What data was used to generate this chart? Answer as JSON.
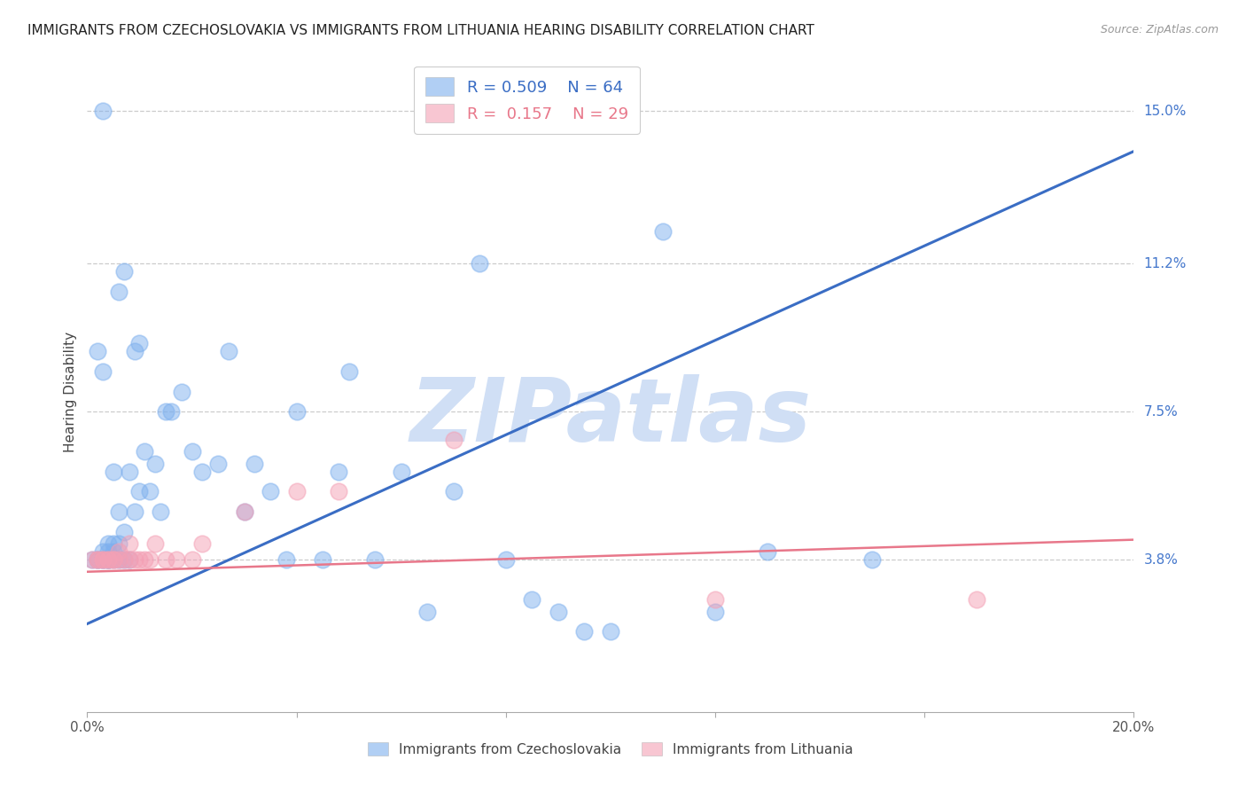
{
  "title": "IMMIGRANTS FROM CZECHOSLOVAKIA VS IMMIGRANTS FROM LITHUANIA HEARING DISABILITY CORRELATION CHART",
  "source": "Source: ZipAtlas.com",
  "ylabel": "Hearing Disability",
  "xlim": [
    0.0,
    0.2
  ],
  "ylim": [
    0.0,
    0.16
  ],
  "ytick_labels_right": [
    "15.0%",
    "11.2%",
    "7.5%",
    "3.8%"
  ],
  "ytick_vals_right": [
    0.15,
    0.112,
    0.075,
    0.038
  ],
  "legend_r1": "R = 0.509",
  "legend_n1": "N = 64",
  "legend_r2": "R =  0.157",
  "legend_n2": "N = 29",
  "blue_color": "#7EB0EE",
  "pink_color": "#F4A0B5",
  "line_blue": "#3A6DC4",
  "line_pink": "#E8778A",
  "watermark": "ZIPatlas",
  "watermark_color": "#D0DFF5",
  "blue_scatter_x": [
    0.001,
    0.002,
    0.002,
    0.003,
    0.003,
    0.003,
    0.004,
    0.004,
    0.004,
    0.004,
    0.005,
    0.005,
    0.005,
    0.006,
    0.006,
    0.006,
    0.007,
    0.007,
    0.008,
    0.008,
    0.009,
    0.009,
    0.01,
    0.01,
    0.011,
    0.012,
    0.013,
    0.014,
    0.015,
    0.016,
    0.018,
    0.02,
    0.022,
    0.025,
    0.027,
    0.03,
    0.032,
    0.035,
    0.038,
    0.04,
    0.045,
    0.048,
    0.05,
    0.055,
    0.06,
    0.065,
    0.07,
    0.075,
    0.08,
    0.085,
    0.09,
    0.095,
    0.1,
    0.11,
    0.12,
    0.13,
    0.15,
    0.002,
    0.003,
    0.003,
    0.004,
    0.005,
    0.006,
    0.007
  ],
  "blue_scatter_y": [
    0.038,
    0.038,
    0.038,
    0.038,
    0.038,
    0.04,
    0.038,
    0.038,
    0.04,
    0.042,
    0.038,
    0.042,
    0.06,
    0.038,
    0.042,
    0.05,
    0.038,
    0.045,
    0.038,
    0.06,
    0.05,
    0.09,
    0.092,
    0.055,
    0.065,
    0.055,
    0.062,
    0.05,
    0.075,
    0.075,
    0.08,
    0.065,
    0.06,
    0.062,
    0.09,
    0.05,
    0.062,
    0.055,
    0.038,
    0.075,
    0.038,
    0.06,
    0.085,
    0.038,
    0.06,
    0.025,
    0.055,
    0.112,
    0.038,
    0.028,
    0.025,
    0.02,
    0.02,
    0.12,
    0.025,
    0.04,
    0.038,
    0.09,
    0.085,
    0.15,
    0.038,
    0.04,
    0.105,
    0.11
  ],
  "pink_scatter_x": [
    0.001,
    0.002,
    0.002,
    0.003,
    0.003,
    0.004,
    0.004,
    0.005,
    0.005,
    0.006,
    0.006,
    0.007,
    0.008,
    0.008,
    0.009,
    0.01,
    0.011,
    0.012,
    0.013,
    0.015,
    0.017,
    0.02,
    0.022,
    0.03,
    0.04,
    0.048,
    0.07,
    0.12,
    0.17
  ],
  "pink_scatter_y": [
    0.038,
    0.038,
    0.038,
    0.038,
    0.038,
    0.038,
    0.038,
    0.038,
    0.038,
    0.038,
    0.04,
    0.038,
    0.038,
    0.042,
    0.038,
    0.038,
    0.038,
    0.038,
    0.042,
    0.038,
    0.038,
    0.038,
    0.042,
    0.05,
    0.055,
    0.055,
    0.068,
    0.028,
    0.028
  ],
  "blue_line_x": [
    0.0,
    0.2
  ],
  "blue_line_y": [
    0.022,
    0.14
  ],
  "pink_line_x": [
    0.0,
    0.2
  ],
  "pink_line_y": [
    0.035,
    0.043
  ],
  "grid_color": "#CCCCCC",
  "background_color": "#FFFFFF",
  "title_fontsize": 11,
  "axis_label_fontsize": 11,
  "tick_fontsize": 11
}
